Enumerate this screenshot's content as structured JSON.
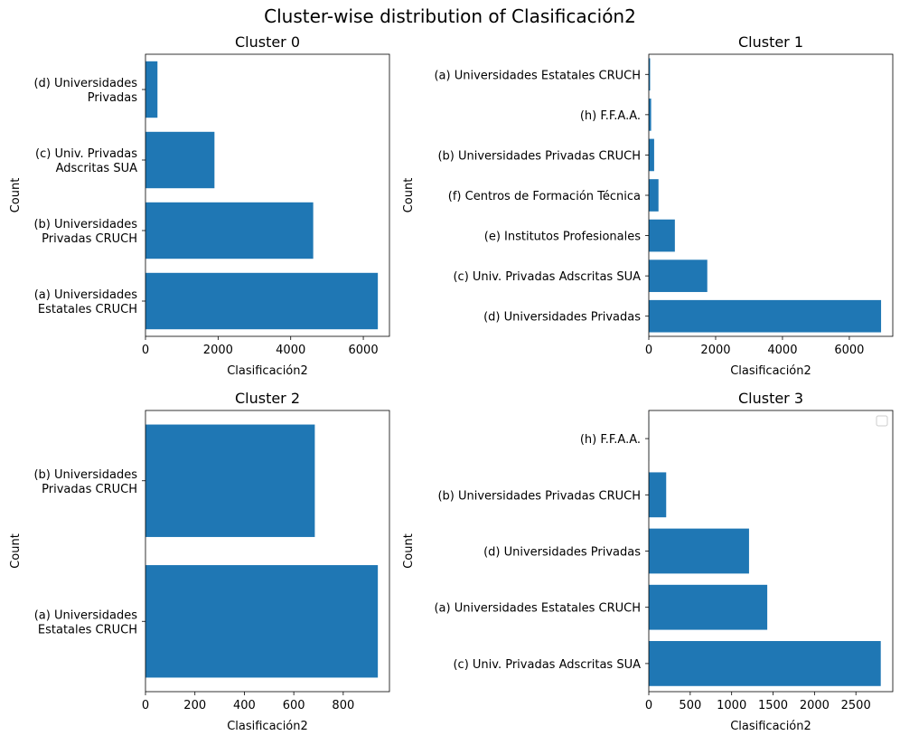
{
  "figure": {
    "title": "Cluster-wise distribution of Clasificación2"
  },
  "colors": {
    "bar": "#1f77b4",
    "axis": "#000000",
    "background": "#ffffff"
  },
  "chart_data": [
    {
      "type": "bar",
      "orientation": "horizontal",
      "title": "Cluster 0",
      "xlabel": "Clasificación2",
      "ylabel": "Count",
      "xlim": [
        0,
        6720
      ],
      "xticks": [
        0,
        2000,
        4000,
        6000
      ],
      "xtick_labels": [
        "0",
        "2000",
        "4000",
        "6000"
      ],
      "categories": [
        [
          "(a) Universidades",
          "Estatales CRUCH"
        ],
        [
          "(b) Universidades",
          "Privadas CRUCH"
        ],
        [
          "(c) Univ. Privadas",
          "Adscritas SUA"
        ],
        [
          "(d) Universidades",
          "Privadas"
        ]
      ],
      "values": [
        6400,
        4620,
        1900,
        330
      ]
    },
    {
      "type": "bar",
      "orientation": "horizontal",
      "title": "Cluster 1",
      "xlabel": "Clasificación2",
      "ylabel": "Count",
      "xlim": [
        0,
        7300
      ],
      "xticks": [
        0,
        2000,
        4000,
        6000
      ],
      "xtick_labels": [
        "0",
        "2000",
        "4000",
        "6000"
      ],
      "categories": [
        [
          "(d) Universidades Privadas"
        ],
        [
          "(c) Univ. Privadas Adscritas SUA"
        ],
        [
          "(e) Institutos Profesionales"
        ],
        [
          "(f) Centros de Formación Técnica"
        ],
        [
          "(b) Universidades Privadas CRUCH"
        ],
        [
          "(h) F.F.A.A."
        ],
        [
          "(a) Universidades Estatales CRUCH"
        ]
      ],
      "values": [
        6950,
        1750,
        780,
        290,
        160,
        70,
        40
      ]
    },
    {
      "type": "bar",
      "orientation": "horizontal",
      "title": "Cluster 2",
      "xlabel": "Clasificación2",
      "ylabel": "Count",
      "xlim": [
        0,
        987
      ],
      "xticks": [
        0,
        200,
        400,
        600,
        800
      ],
      "xtick_labels": [
        "0",
        "200",
        "400",
        "600",
        "800"
      ],
      "categories": [
        [
          "(a) Universidades",
          "Estatales CRUCH"
        ],
        [
          "(b) Universidades",
          "Privadas CRUCH"
        ]
      ],
      "values": [
        940,
        685
      ]
    },
    {
      "type": "bar",
      "orientation": "horizontal",
      "title": "Cluster 3",
      "xlabel": "Clasificación2",
      "ylabel": "Count",
      "xlim": [
        0,
        2945
      ],
      "xticks": [
        0,
        500,
        1000,
        1500,
        2000,
        2500
      ],
      "xtick_labels": [
        "0",
        "500",
        "1000",
        "1500",
        "2000",
        "2500"
      ],
      "categories": [
        [
          "(c) Univ. Privadas Adscritas SUA"
        ],
        [
          "(a) Universidades Estatales CRUCH"
        ],
        [
          "(d) Universidades Privadas"
        ],
        [
          "(b) Universidades Privadas CRUCH"
        ],
        [
          "(h) F.F.A.A."
        ]
      ],
      "values": [
        2800,
        1430,
        1210,
        210,
        2
      ],
      "legend": {
        "placement": "top-right",
        "entries": []
      }
    }
  ]
}
